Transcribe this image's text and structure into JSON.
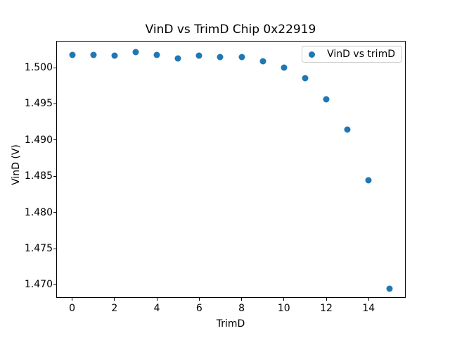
{
  "figure": {
    "background": "#ffffff",
    "spine_color": "#000000",
    "tick_color": "#000000"
  },
  "chart_data": {
    "type": "scatter",
    "title": "VinD vs TrimD Chip 0x22919",
    "xlabel": "TrimD",
    "ylabel": "VinD (V)",
    "series": [
      {
        "name": "VinD vs trimD",
        "marker": "circle",
        "color": "#1f77b4",
        "x": [
          0,
          1,
          2,
          3,
          4,
          5,
          6,
          7,
          8,
          9,
          10,
          11,
          12,
          13,
          14,
          15
        ],
        "y": [
          1.50172,
          1.50175,
          1.50166,
          1.50211,
          1.50172,
          1.50129,
          1.50168,
          1.50146,
          1.50146,
          1.50085,
          1.5,
          1.49854,
          1.49562,
          1.49147,
          1.48447,
          1.46946
        ]
      }
    ],
    "xlim": [
      -0.75,
      15.75
    ],
    "ylim": [
      1.4682,
      1.5037
    ],
    "xticks": [
      0,
      2,
      4,
      6,
      8,
      10,
      12,
      14
    ],
    "yticks": [
      1.47,
      1.475,
      1.48,
      1.485,
      1.49,
      1.495,
      1.5
    ],
    "ytick_decimals": 3,
    "grid": false,
    "legend_position": "upper right"
  }
}
